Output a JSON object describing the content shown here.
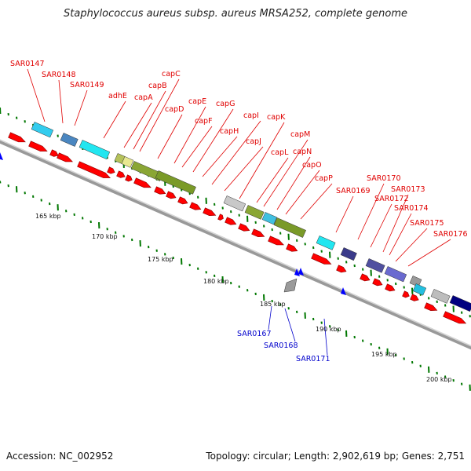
{
  "title": "Staphylococcus aureus subsp. aureus MRSA252, complete genome",
  "footer": {
    "accession": "Accession: NC_002952",
    "topology": "Topology: circular; Length: 2,902,619 bp; Genes: 2,751"
  },
  "scale_labels": [
    "165 kbp",
    "170 kbp",
    "175 kbp",
    "180 kbp",
    "185 kbp",
    "190 kbp",
    "195 kbp",
    "200 kbp"
  ],
  "forward_gene_labels": [
    "SAR0147",
    "SAR0148",
    "SAR0149",
    "adhE",
    "capA",
    "capB",
    "capC",
    "capD",
    "capE",
    "capF",
    "capG",
    "capH",
    "capI",
    "capJ",
    "capK",
    "capL",
    "capM",
    "capN",
    "capO",
    "capP",
    "SAR0169",
    "SAR0170",
    "SAR0172",
    "SAR0173",
    "SAR0174",
    "SAR0175",
    "SAR0176"
  ],
  "reverse_gene_labels": [
    "SAR0167",
    "SAR0168",
    "SAR0171"
  ],
  "colors": {
    "forward_gene": "#ff0000",
    "reverse_gene": "#0000ff",
    "label_forward": "#e00000",
    "label_reverse": "#0000cc",
    "backbone": "#888888",
    "tick": "#007700"
  }
}
